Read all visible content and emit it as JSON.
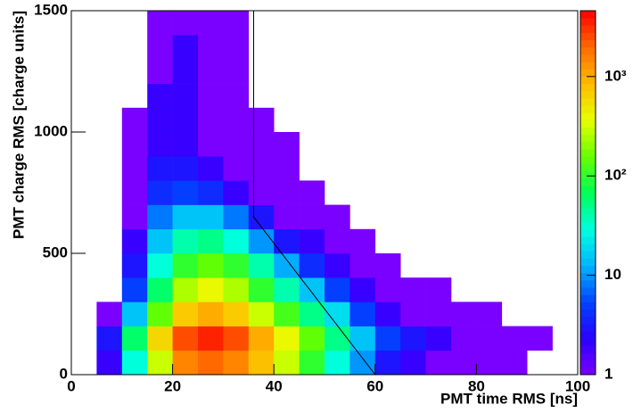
{
  "chart_data": {
    "type": "heatmap2d",
    "x_label": "PMT time RMS [ns]",
    "y_label": "PMT charge RMS [charge units]",
    "xbins": [
      0,
      5,
      10,
      15,
      20,
      25,
      30,
      35,
      40,
      45,
      50,
      55,
      60,
      65,
      70,
      75,
      80,
      85,
      90,
      95,
      100
    ],
    "ybins": [
      0,
      100,
      200,
      300,
      400,
      500,
      600,
      700,
      800,
      900,
      1000,
      1100,
      1200,
      1300,
      1400,
      1500
    ],
    "z": [
      [
        0,
        2,
        30,
        300,
        1500,
        2000,
        1500,
        800,
        300,
        100,
        30,
        10,
        3,
        2,
        1,
        1,
        1,
        1,
        0,
        0
      ],
      [
        0,
        3,
        60,
        600,
        2500,
        3500,
        2500,
        1000,
        400,
        150,
        50,
        15,
        5,
        3,
        2,
        1,
        1,
        1,
        1,
        0
      ],
      [
        0,
        1,
        15,
        150,
        700,
        1000,
        700,
        300,
        120,
        50,
        20,
        5,
        2,
        1,
        1,
        1,
        1,
        0,
        0,
        0
      ],
      [
        0,
        0,
        5,
        60,
        250,
        400,
        250,
        100,
        40,
        15,
        5,
        2,
        1,
        1,
        1,
        0,
        0,
        0,
        0,
        0
      ],
      [
        0,
        0,
        3,
        30,
        100,
        150,
        100,
        40,
        12,
        4,
        2,
        1,
        1,
        0,
        0,
        0,
        0,
        0,
        0,
        0
      ],
      [
        0,
        0,
        2,
        15,
        40,
        50,
        30,
        10,
        3,
        2,
        1,
        1,
        0,
        0,
        0,
        0,
        0,
        0,
        0,
        0
      ],
      [
        0,
        0,
        1,
        8,
        15,
        15,
        8,
        3,
        1,
        1,
        1,
        0,
        0,
        0,
        0,
        0,
        0,
        0,
        0,
        0
      ],
      [
        0,
        0,
        1,
        4,
        5,
        4,
        2,
        1,
        1,
        1,
        0,
        0,
        0,
        0,
        0,
        0,
        0,
        0,
        0,
        0
      ],
      [
        0,
        0,
        1,
        3,
        3,
        2,
        1,
        1,
        1,
        0,
        0,
        0,
        0,
        0,
        0,
        0,
        0,
        0,
        0,
        0
      ],
      [
        0,
        0,
        1,
        2,
        2,
        1,
        1,
        1,
        1,
        0,
        0,
        0,
        0,
        0,
        0,
        0,
        0,
        0,
        0,
        0
      ],
      [
        0,
        0,
        1,
        2,
        2,
        1,
        1,
        1,
        0,
        0,
        0,
        0,
        0,
        0,
        0,
        0,
        0,
        0,
        0,
        0
      ],
      [
        0,
        0,
        0,
        2,
        2,
        1,
        1,
        0,
        0,
        0,
        0,
        0,
        0,
        0,
        0,
        0,
        0,
        0,
        0,
        0
      ],
      [
        0,
        0,
        0,
        1,
        2,
        1,
        1,
        0,
        0,
        0,
        0,
        0,
        0,
        0,
        0,
        0,
        0,
        0,
        0,
        0
      ],
      [
        0,
        0,
        0,
        1,
        2,
        1,
        1,
        0,
        0,
        0,
        0,
        0,
        0,
        0,
        0,
        0,
        0,
        0,
        0,
        0
      ],
      [
        0,
        0,
        0,
        1,
        1,
        1,
        1,
        0,
        0,
        0,
        0,
        0,
        0,
        0,
        0,
        0,
        0,
        0,
        0,
        0
      ]
    ],
    "xlim": [
      0,
      100
    ],
    "xticks": [
      0,
      20,
      40,
      60,
      80,
      100
    ],
    "ylim": [
      0,
      1500
    ],
    "yticks": [
      0,
      500,
      1000,
      1500
    ],
    "zlim": [
      1,
      4600
    ],
    "zlog": true,
    "zticks": [
      1,
      10,
      {
        "value": 100,
        "label": "10²"
      },
      {
        "value": 1000,
        "label": "10³"
      }
    ],
    "colormap": [
      "#7a00ff",
      "#2a00ff",
      "#0044ff",
      "#00b4ff",
      "#00ffe0",
      "#00ff55",
      "#66ff00",
      "#e8ff00",
      "#ffbb00",
      "#ff6a00",
      "#ff0000"
    ],
    "cut_line": {
      "x": [
        36,
        36,
        60
      ],
      "y": [
        1500,
        650,
        0
      ]
    }
  }
}
